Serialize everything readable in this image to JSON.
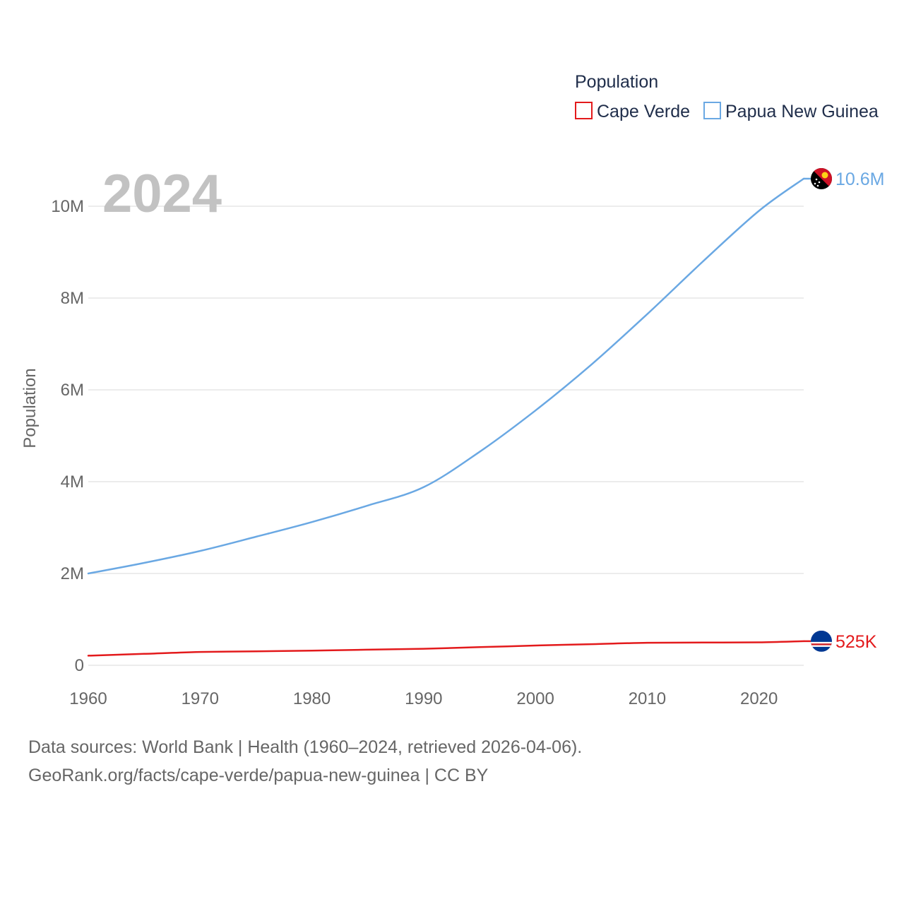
{
  "chart_data": {
    "type": "line",
    "year_label": "2024",
    "ylabel": "Population",
    "legend_title": "Population",
    "xlim": [
      1960,
      2024
    ],
    "ylim": [
      0,
      10600000
    ],
    "x_ticks": [
      1960,
      1970,
      1980,
      1990,
      2000,
      2010,
      2020
    ],
    "x_tick_labels": [
      "1960",
      "1970",
      "1980",
      "1990",
      "2000",
      "2010",
      "2020"
    ],
    "y_ticks": [
      0,
      2000000,
      4000000,
      6000000,
      8000000,
      10000000
    ],
    "y_tick_labels": [
      "0",
      "2M",
      "4M",
      "6M",
      "8M",
      "10M"
    ],
    "series": [
      {
        "name": "Cape Verde",
        "color": "#e31a1c",
        "end_label": "525K",
        "flag": "cape-verde-flag-icon",
        "x": [
          1960,
          1965,
          1970,
          1975,
          1980,
          1985,
          1990,
          1995,
          2000,
          2005,
          2010,
          2015,
          2020,
          2024
        ],
        "values": [
          210000,
          250000,
          290000,
          305000,
          320000,
          340000,
          360000,
          395000,
          430000,
          460000,
          490000,
          495000,
          500000,
          525000
        ]
      },
      {
        "name": "Papua New Guinea",
        "color": "#6aa8e3",
        "end_label": "10.6M",
        "flag": "papua-new-guinea-flag-icon",
        "x": [
          1960,
          1965,
          1970,
          1975,
          1980,
          1985,
          1990,
          1995,
          2000,
          2005,
          2010,
          2015,
          2020,
          2024
        ],
        "values": [
          2000000,
          2230000,
          2490000,
          2800000,
          3120000,
          3480000,
          3880000,
          4650000,
          5550000,
          6550000,
          7650000,
          8800000,
          9900000,
          10600000
        ]
      }
    ]
  },
  "footer": {
    "line1": "Data sources: World Bank | Health (1960–2024, retrieved 2026-04-06).",
    "line2": "GeoRank.org/facts/cape-verde/papua-new-guinea | CC BY"
  }
}
